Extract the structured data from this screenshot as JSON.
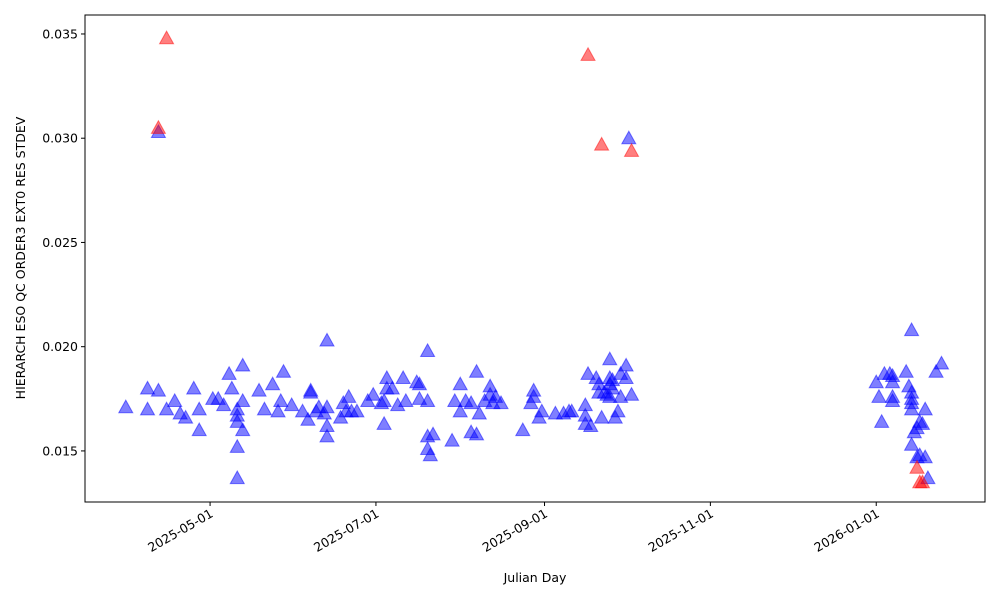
{
  "chart_data": {
    "type": "scatter",
    "x_label": "Julian Day",
    "y_label": "HIERARCH ESO QC ORDER3 EXT0 RES STDEV",
    "xlim": [
      "2025-03-16",
      "2026-02-10"
    ],
    "xticks": [
      "2025-05-01",
      "2025-07-01",
      "2025-09-01",
      "2025-11-01",
      "2026-01-01"
    ],
    "ylim": [
      0.01255,
      0.03591
    ],
    "yticks": [
      0.015,
      {
        "value": 0.02,
        "label": "0.020"
      },
      0.025,
      {
        "value": 0.03,
        "label": "0.030"
      },
      0.035
    ],
    "marker": "triangle",
    "series": [
      {
        "color": "#0000ff",
        "x": [
          "2025-03-31",
          "2025-04-08",
          "2025-04-08",
          "2025-04-12",
          "2025-04-12",
          "2025-04-15",
          "2025-04-18",
          "2025-04-20",
          "2025-04-22",
          "2025-04-25",
          "2025-04-27",
          "2025-04-27",
          "2025-05-02",
          "2025-05-04",
          "2025-05-06",
          "2025-05-08",
          "2025-05-09",
          "2025-05-11",
          "2025-05-11",
          "2025-05-11",
          "2025-05-11",
          "2025-05-11",
          "2025-05-13",
          "2025-05-13",
          "2025-05-13",
          "2025-05-19",
          "2025-05-21",
          "2025-05-24",
          "2025-05-26",
          "2025-05-27",
          "2025-05-28",
          "2025-05-31",
          "2025-06-04",
          "2025-06-06",
          "2025-06-07",
          "2025-06-07",
          "2025-06-09",
          "2025-06-10",
          "2025-06-12",
          "2025-06-13",
          "2025-06-13",
          "2025-06-13",
          "2025-06-13",
          "2025-06-18",
          "2025-06-19",
          "2025-06-20",
          "2025-06-21",
          "2025-06-22",
          "2025-06-24",
          "2025-06-28",
          "2025-06-30",
          "2025-07-03",
          "2025-07-04",
          "2025-07-04",
          "2025-07-05",
          "2025-07-05",
          "2025-07-07",
          "2025-07-09",
          "2025-07-11",
          "2025-07-12",
          "2025-07-16",
          "2025-07-17",
          "2025-07-17",
          "2025-07-20",
          "2025-07-20",
          "2025-07-20",
          "2025-07-20",
          "2025-07-21",
          "2025-07-22",
          "2025-07-29",
          "2025-07-30",
          "2025-08-01",
          "2025-08-01",
          "2025-08-03",
          "2025-08-05",
          "2025-08-05",
          "2025-08-07",
          "2025-08-07",
          "2025-08-08",
          "2025-08-10",
          "2025-08-12",
          "2025-08-12",
          "2025-08-13",
          "2025-08-14",
          "2025-08-16",
          "2025-08-24",
          "2025-08-27",
          "2025-08-28",
          "2025-08-28",
          "2025-08-30",
          "2025-08-31",
          "2025-09-05",
          "2025-09-08",
          "2025-09-10",
          "2025-09-11",
          "2025-09-16",
          "2025-09-16",
          "2025-09-16",
          "2025-09-17",
          "2025-09-18",
          "2025-09-20",
          "2025-09-21",
          "2025-09-21",
          "2025-09-22",
          "2025-09-23",
          "2025-09-24",
          "2025-09-25",
          "2025-09-25",
          "2025-09-25",
          "2025-09-25",
          "2025-09-26",
          "2025-09-26",
          "2025-09-27",
          "2025-09-28",
          "2025-09-29",
          "2025-09-29",
          "2025-10-01",
          "2025-10-01",
          "2025-10-02",
          "2025-10-03",
          "2026-01-01",
          "2026-01-02",
          "2026-01-03",
          "2026-01-04",
          "2026-01-06",
          "2026-01-07",
          "2026-01-07",
          "2026-01-07",
          "2026-01-07",
          "2026-01-12",
          "2026-01-13",
          "2026-01-14",
          "2026-01-14",
          "2026-01-14",
          "2026-01-14",
          "2026-01-14",
          "2026-01-14",
          "2026-01-15",
          "2026-01-16",
          "2026-01-16",
          "2026-01-17",
          "2026-01-17",
          "2026-01-18",
          "2026-01-19",
          "2026-01-19",
          "2026-01-20",
          "2026-01-23",
          "2026-01-25"
        ],
        "values": [
          0.0171,
          0.017,
          0.018,
          0.0179,
          0.0303,
          0.017,
          0.0174,
          0.0168,
          0.0166,
          0.018,
          0.016,
          0.017,
          0.0175,
          0.0175,
          0.0172,
          0.0187,
          0.018,
          0.0152,
          0.0164,
          0.0167,
          0.017,
          0.0137,
          0.0174,
          0.016,
          0.0191,
          0.0179,
          0.017,
          0.0182,
          0.0169,
          0.0174,
          0.0188,
          0.0172,
          0.0169,
          0.0165,
          0.0179,
          0.0178,
          0.0169,
          0.0171,
          0.0168,
          0.0162,
          0.0203,
          0.0157,
          0.0171,
          0.0166,
          0.0173,
          0.0169,
          0.0176,
          0.0169,
          0.0169,
          0.0174,
          0.0177,
          0.0173,
          0.0174,
          0.0163,
          0.018,
          0.0185,
          0.018,
          0.0172,
          0.0185,
          0.0174,
          0.0183,
          0.0182,
          0.0175,
          0.0198,
          0.0174,
          0.0157,
          0.0151,
          0.0148,
          0.0158,
          0.0155,
          0.0174,
          0.0169,
          0.0182,
          0.0174,
          0.0173,
          0.0159,
          0.0188,
          0.0158,
          0.0168,
          0.0174,
          0.0177,
          0.0181,
          0.0173,
          0.0176,
          0.0173,
          0.016,
          0.0173,
          0.0176,
          0.0179,
          0.0166,
          0.0169,
          0.0168,
          0.0168,
          0.0169,
          0.0169,
          0.0172,
          0.0167,
          0.0163,
          0.0187,
          0.0162,
          0.0185,
          0.0178,
          0.0182,
          0.0166,
          0.0178,
          0.0177,
          0.0194,
          0.0185,
          0.0182,
          0.0176,
          0.018,
          0.0184,
          0.0166,
          0.0169,
          0.0187,
          0.0176,
          0.0191,
          0.0185,
          0.03,
          0.0177,
          0.0183,
          0.0176,
          0.0164,
          0.0187,
          0.0187,
          0.0176,
          0.0183,
          0.0186,
          0.0174,
          0.0188,
          0.0181,
          0.0178,
          0.0173,
          0.017,
          0.0208,
          0.0175,
          0.0153,
          0.0159,
          0.0147,
          0.0161,
          0.0148,
          0.0164,
          0.0163,
          0.017,
          0.0147,
          0.0137,
          0.0188,
          0.0192
        ]
      },
      {
        "color": "#ff0000",
        "x": [
          "2025-04-12",
          "2025-04-15",
          "2025-09-17",
          "2025-09-22",
          "2025-10-03",
          "2026-01-16",
          "2026-01-17",
          "2026-01-18"
        ],
        "values": [
          0.0305,
          0.0348,
          0.034,
          0.0297,
          0.0294,
          0.0142,
          0.0135,
          0.0135
        ]
      }
    ]
  }
}
